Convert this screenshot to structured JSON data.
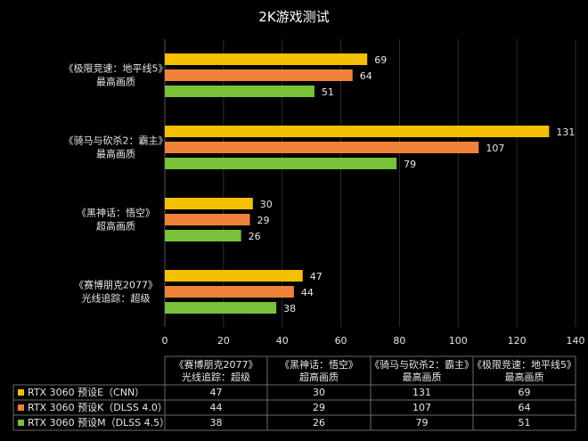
{
  "chart_data": {
    "type": "bar",
    "orientation": "horizontal",
    "title": "2K游戏测试",
    "categories": [
      {
        "name": "《极限竞速：地平线5》",
        "setting": "最高画质"
      },
      {
        "name": "《骑马与砍杀2：霸主》",
        "setting": "最高画质"
      },
      {
        "name": "《黑神话：悟空》",
        "setting": "超高画质"
      },
      {
        "name": "《赛博朋克2077》",
        "setting": "光线追踪：超级"
      }
    ],
    "series": [
      {
        "name": "RTX 3060 预设E（CNN）",
        "color": "#f5c000",
        "values": [
          69,
          131,
          30,
          47
        ]
      },
      {
        "name": "RTX 3060 预设K（DLSS 4.0）",
        "color": "#f0823a",
        "values": [
          64,
          107,
          29,
          44
        ]
      },
      {
        "name": "RTX 3060 预设M（DLSS 4.5）",
        "color": "#78c23a",
        "values": [
          51,
          79,
          26,
          38
        ]
      }
    ],
    "xlim": [
      0,
      140
    ],
    "xticks": [
      0,
      20,
      40,
      60,
      80,
      100,
      120,
      140
    ],
    "grid": true,
    "table_order": [
      3,
      2,
      1,
      0
    ]
  }
}
